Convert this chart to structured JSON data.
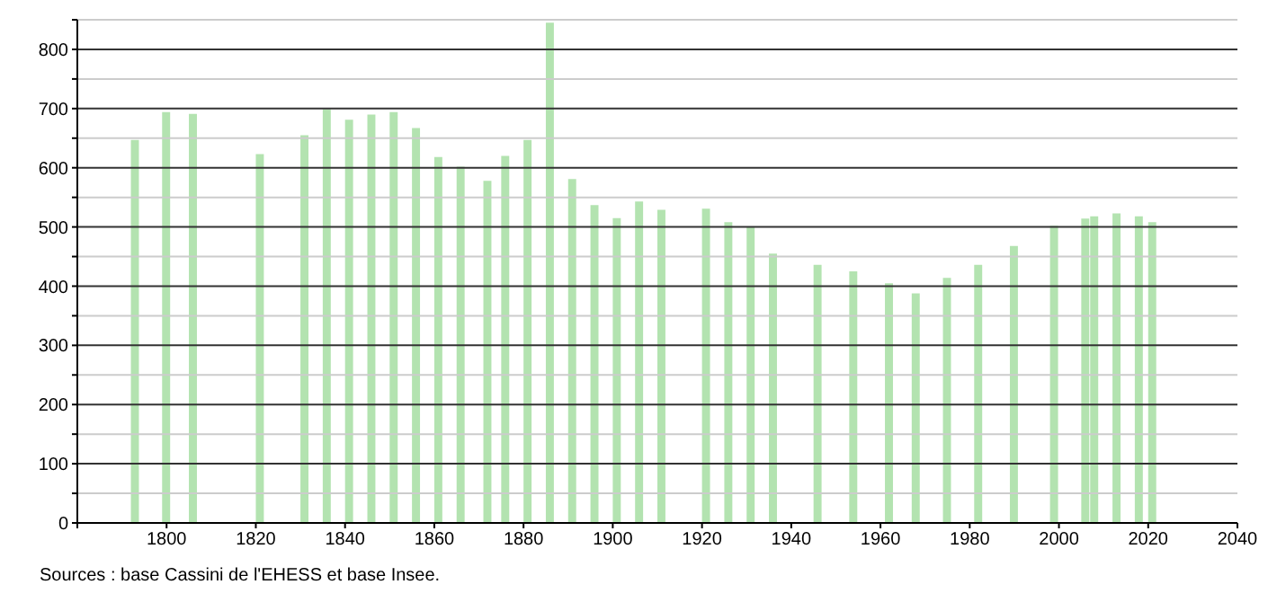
{
  "chart_data": {
    "type": "bar",
    "x": [
      1793,
      1800,
      1806,
      1821,
      1831,
      1836,
      1841,
      1846,
      1851,
      1856,
      1861,
      1866,
      1872,
      1876,
      1881,
      1886,
      1891,
      1896,
      1901,
      1906,
      1911,
      1921,
      1926,
      1931,
      1936,
      1946,
      1954,
      1962,
      1968,
      1975,
      1982,
      1990,
      1999,
      2006,
      2008,
      2013,
      2018,
      2021
    ],
    "values": [
      647,
      694,
      691,
      623,
      655,
      699,
      681,
      690,
      694,
      667,
      618,
      602,
      578,
      620,
      647,
      845,
      581,
      537,
      515,
      543,
      529,
      531,
      508,
      500,
      455,
      436,
      425,
      405,
      388,
      414,
      436,
      468,
      502,
      514,
      518,
      523,
      518,
      508
    ],
    "color": "#b3e3b0",
    "xlim": [
      1780,
      2040
    ],
    "xticks": [
      {
        "value": 1780,
        "label": null
      },
      1800,
      1820,
      1840,
      1860,
      1880,
      1900,
      1920,
      1940,
      1960,
      1980,
      2000,
      2020,
      2040
    ],
    "ylim": [
      0,
      850
    ],
    "yticks": [
      0,
      {
        "value": 50,
        "label": null
      },
      100,
      {
        "value": 150,
        "label": null
      },
      200,
      {
        "value": 250,
        "label": null
      },
      300,
      {
        "value": 350,
        "label": null
      },
      400,
      {
        "value": 450,
        "label": null
      },
      500,
      {
        "value": 550,
        "label": null
      },
      600,
      {
        "value": 650,
        "label": null
      },
      700,
      {
        "value": 750,
        "label": null
      },
      800,
      {
        "value": 850,
        "label": null
      }
    ],
    "grid": true,
    "annotations": [
      "Sources : base Cassini de l'EHESS et base Insee."
    ]
  }
}
